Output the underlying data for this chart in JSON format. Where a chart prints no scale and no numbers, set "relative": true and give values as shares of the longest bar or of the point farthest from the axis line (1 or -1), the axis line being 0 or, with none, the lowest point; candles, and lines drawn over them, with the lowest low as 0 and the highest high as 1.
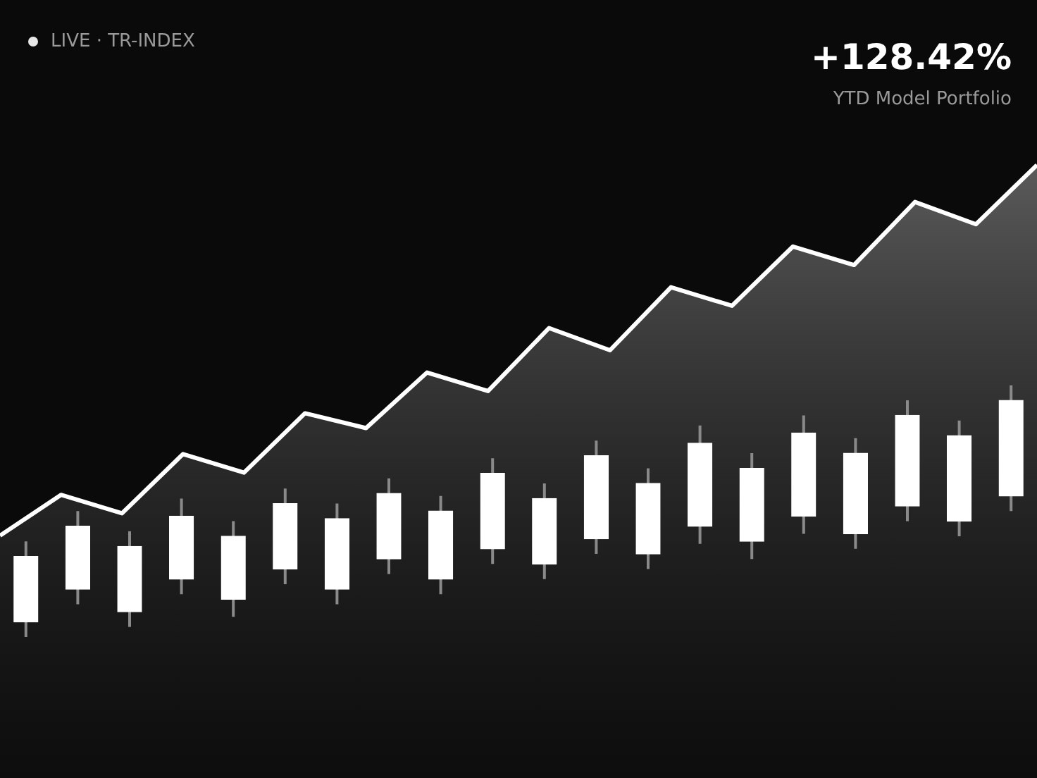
{
  "chart_data": [
    {
      "type": "candlestick",
      "title": "+128.42%",
      "subtitle": "YTD Model Portfolio",
      "annotations": [
        "LIVE · TR-INDEX"
      ],
      "relative": true,
      "legend": false,
      "categories": [
        null,
        null,
        null,
        null,
        null,
        null,
        null,
        null,
        null,
        null,
        null,
        null,
        null,
        null,
        null,
        null,
        null,
        null,
        null,
        null
      ],
      "ohlc": [
        [
          0.06,
          0.38,
          0,
          0.32
        ],
        [
          0.19,
          0.5,
          0.13,
          0.44
        ],
        [
          0.1,
          0.42,
          0.04,
          0.36
        ],
        [
          0.23,
          0.55,
          0.17,
          0.48
        ],
        [
          0.15,
          0.46,
          0.08,
          0.4
        ],
        [
          0.27,
          0.59,
          0.21,
          0.53
        ],
        [
          0.19,
          0.53,
          0.13,
          0.47
        ],
        [
          0.31,
          0.63,
          0.25,
          0.57
        ],
        [
          0.23,
          0.56,
          0.17,
          0.5
        ],
        [
          0.35,
          0.71,
          0.29,
          0.65
        ],
        [
          0.29,
          0.61,
          0.23,
          0.55
        ],
        [
          0.39,
          0.78,
          0.33,
          0.72
        ],
        [
          0.33,
          0.67,
          0.27,
          0.61
        ],
        [
          0.44,
          0.84,
          0.37,
          0.77
        ],
        [
          0.38,
          0.73,
          0.31,
          0.67
        ],
        [
          0.48,
          0.88,
          0.41,
          0.81
        ],
        [
          0.41,
          0.79,
          0.35,
          0.73
        ],
        [
          0.52,
          0.94,
          0.46,
          0.88
        ],
        [
          0.46,
          0.86,
          0.4,
          0.8
        ],
        [
          0.56,
          1,
          0.5,
          0.94
        ]
      ],
      "color": "#ffffff"
    },
    {
      "type": "area",
      "relative": true,
      "color": "#ffffff",
      "categories": [
        null,
        null,
        null,
        null,
        null,
        null,
        null,
        null,
        null,
        null,
        null,
        null,
        null,
        null,
        null,
        null,
        null,
        null
      ],
      "values": [
        0,
        0.11,
        0.06,
        0.22,
        0.17,
        0.33,
        0.29,
        0.44,
        0.39,
        0.56,
        0.5,
        0.67,
        0.62,
        0.78,
        0.73,
        0.9,
        0.84,
        1
      ]
    }
  ]
}
